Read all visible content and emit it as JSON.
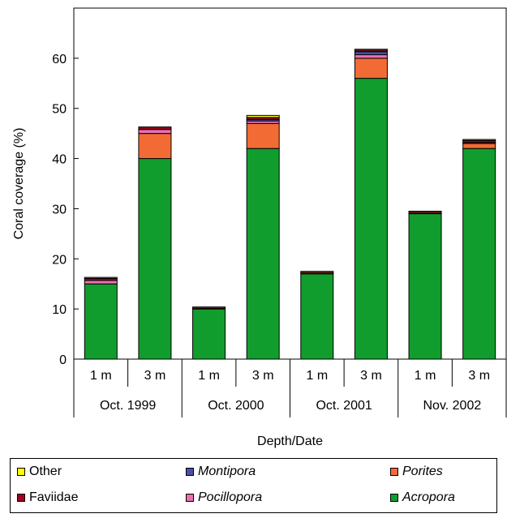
{
  "chart_data": {
    "type": "bar",
    "stacked": true,
    "title": "",
    "xlabel": "Depth/Date",
    "ylabel": "Coral coverage (%)",
    "ylim": [
      0,
      70
    ],
    "yticks": [
      0,
      10,
      20,
      30,
      40,
      50,
      60
    ],
    "grid": false,
    "legend_position": "bottom",
    "groups": [
      "Oct. 1999",
      "Oct. 2000",
      "Oct. 2001",
      "Nov. 2002"
    ],
    "categories": [
      "1 m",
      "3 m",
      "1 m",
      "3 m",
      "1 m",
      "3 m",
      "1 m",
      "3 m"
    ],
    "series": [
      {
        "name": "Acropora",
        "color": "#119d2e",
        "italic": true,
        "values": [
          15.0,
          40.0,
          10.0,
          42.0,
          17.0,
          56.0,
          29.0,
          42.0
        ]
      },
      {
        "name": "Porites",
        "color": "#f26b35",
        "italic": true,
        "values": [
          0.0,
          5.0,
          0.0,
          5.0,
          0.0,
          4.0,
          0.0,
          1.0
        ]
      },
      {
        "name": "Pocillopora",
        "color": "#e96fb0",
        "italic": true,
        "values": [
          0.7,
          0.8,
          0.0,
          0.5,
          0.0,
          0.7,
          0.0,
          0.2
        ]
      },
      {
        "name": "Montipora",
        "color": "#4a4fa8",
        "italic": true,
        "values": [
          0.0,
          0.0,
          0.0,
          0.3,
          0.0,
          0.6,
          0.0,
          0.0
        ]
      },
      {
        "name": "Faviidae",
        "color": "#a00020",
        "italic": false,
        "values": [
          0.4,
          0.5,
          0.2,
          0.4,
          0.3,
          0.3,
          0.3,
          0.4
        ]
      },
      {
        "name": "Other",
        "color": "#ffff00",
        "italic": false,
        "values": [
          0.2,
          0.0,
          0.2,
          0.4,
          0.2,
          0.2,
          0.2,
          0.2
        ]
      }
    ],
    "legend_order": [
      "Other",
      "Montipora",
      "Porites",
      "Faviidae",
      "Pocillopora",
      "Acropora"
    ]
  }
}
